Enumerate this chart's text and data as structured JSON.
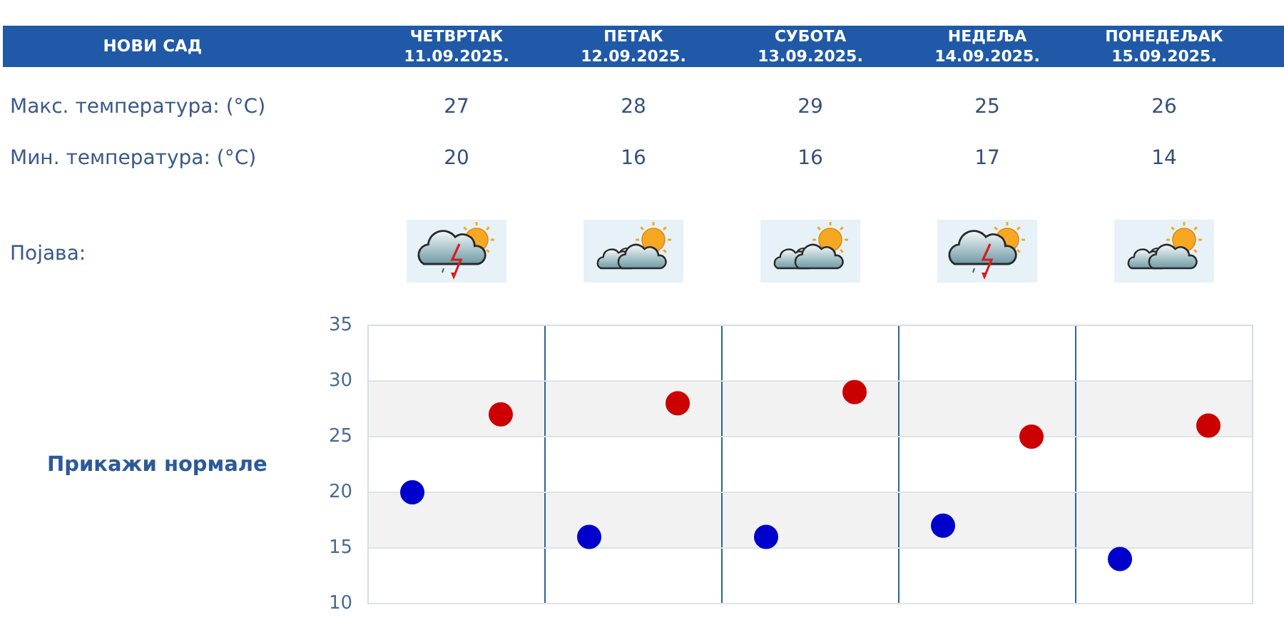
{
  "chart_data": {
    "type": "scatter",
    "title": "НОВИ САД",
    "categories": [
      null,
      null,
      null,
      null,
      null
    ],
    "series": [
      {
        "color": "#cc0000",
        "values": [
          27,
          28,
          29,
          25,
          26
        ]
      },
      {
        "color": "#0000cc",
        "values": [
          20,
          16,
          16,
          17,
          14
        ]
      }
    ],
    "ylim": [
      10,
      35
    ],
    "yticks": [
      10,
      15,
      20,
      25,
      30,
      35
    ],
    "grid": true,
    "tick_labels": "y",
    "marker": "circle",
    "data_labels": true,
    "bands": [
      {
        "axis": "y",
        "from": 15,
        "to": 20,
        "color": "#f2f2f2"
      },
      {
        "axis": "y",
        "from": 25,
        "to": 30,
        "color": "#f2f2f2"
      }
    ],
    "annotations": [
      "ЧЕТВРТАК\n11.09.2025.",
      "ПЕТАК\n12.09.2025.",
      "СУБОТА\n13.09.2025.",
      "НЕДЕЉА\n14.09.2025.",
      "ПОНЕДЕЉАК\n15.09.2025.",
      "Макс. температура: (°C)",
      "Мин. температура: (°C)",
      "Појава:",
      "Прикажи нормале"
    ]
  }
}
